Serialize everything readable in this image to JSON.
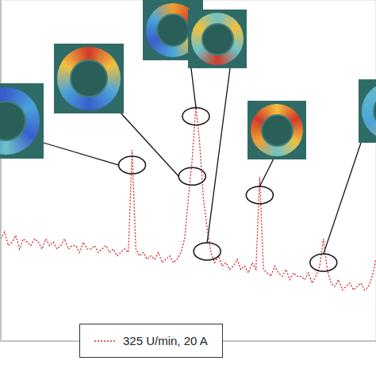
{
  "chart_data": {
    "type": "line",
    "x": [
      0,
      1,
      2,
      3,
      4,
      5,
      6,
      7,
      8,
      9,
      10,
      11,
      12,
      13,
      14,
      15,
      16,
      17,
      18,
      19,
      20,
      21,
      22,
      23,
      24,
      25,
      26,
      27,
      28,
      29,
      30,
      31,
      32,
      33,
      34,
      35,
      36,
      37,
      38,
      39,
      40,
      41,
      42,
      43,
      44,
      45,
      46,
      47,
      48,
      49,
      50,
      51,
      52,
      53,
      54,
      55,
      56,
      57,
      58,
      59,
      60,
      61,
      62,
      63,
      64,
      65,
      66,
      67,
      68,
      69,
      70,
      71,
      72,
      73,
      74,
      75,
      76,
      77,
      78,
      79,
      80,
      81,
      82,
      83,
      84,
      85,
      86,
      87,
      88,
      89,
      90,
      91,
      92,
      93,
      94,
      95,
      96,
      97,
      98,
      99,
      100
    ],
    "series": [
      {
        "name": "325 U/min, 20 A",
        "color": "#d62728",
        "line_style": "dotted",
        "values": [
          30,
          32,
          28,
          29,
          31,
          27,
          30,
          29,
          28,
          30,
          29,
          27,
          30,
          28,
          29,
          27,
          28,
          30,
          27,
          28,
          28,
          26,
          29,
          27,
          27,
          28,
          26,
          27,
          28,
          26,
          27,
          25,
          26,
          27,
          26,
          56,
          27,
          25,
          26,
          24,
          25,
          24,
          26,
          23,
          24,
          25,
          23,
          24,
          26,
          30,
          42,
          53,
          69,
          58,
          42,
          33,
          26,
          23,
          25,
          22,
          23,
          21,
          22,
          24,
          21,
          22,
          20,
          23,
          21,
          48,
          21,
          20,
          19,
          22,
          20,
          19,
          21,
          18,
          20,
          19,
          19,
          18,
          20,
          17,
          19,
          22,
          30,
          21,
          17,
          16,
          18,
          15,
          16,
          17,
          15,
          16,
          17,
          15,
          16,
          19,
          24
        ]
      }
    ],
    "xlim": [
      0,
      100
    ],
    "xticks": [
      0,
      10,
      20,
      30,
      40,
      50,
      60,
      70,
      80,
      90,
      100
    ],
    "ylim": [
      0,
      100
    ],
    "yticks": [
      0,
      20,
      40,
      60,
      80,
      100
    ],
    "grid": true,
    "legend": "bottom",
    "tick_labels": false
  }
}
